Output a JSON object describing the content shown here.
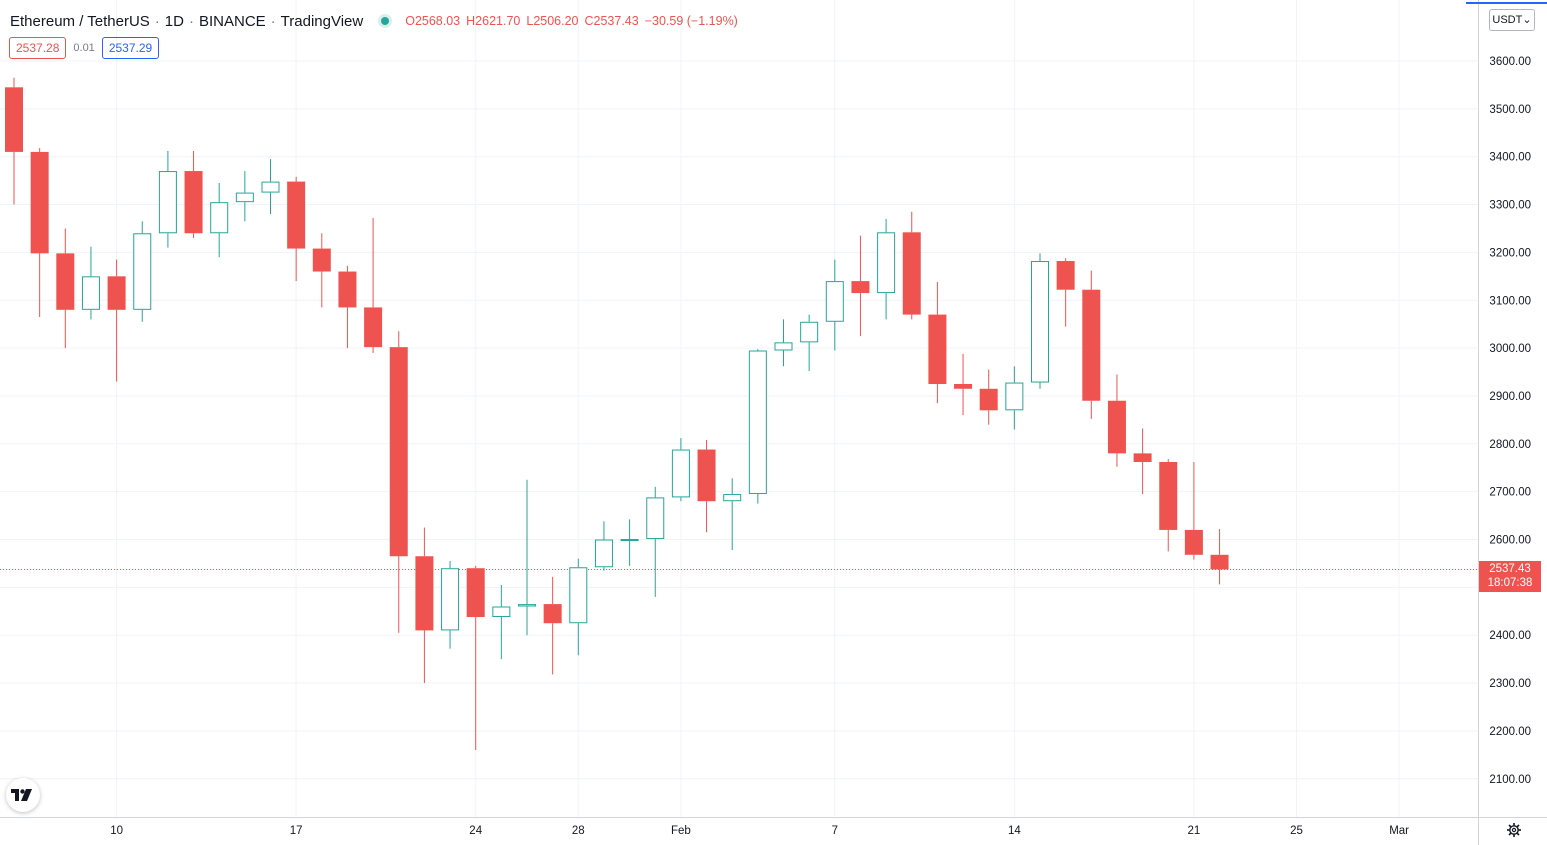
{
  "header": {
    "symbol": "Ethereum / TetherUS",
    "interval": "1D",
    "exchange": "BINANCE",
    "source": "TradingView",
    "ohlc": {
      "open_label": "O",
      "open": "2568.03",
      "high_label": "H",
      "high": "2621.70",
      "low_label": "L",
      "low": "2506.20",
      "close_label": "C",
      "close": "2537.43",
      "change": "−30.59 (−1.19%)"
    }
  },
  "quote": {
    "sell": "2537.28",
    "spread": "0.01",
    "buy": "2537.29"
  },
  "currency_button": "USDT",
  "last_price": {
    "price": "2537.43",
    "countdown": "18:07:38"
  },
  "colors": {
    "up": "#26a69a",
    "down": "#ef5350",
    "grid": "#f0f3fa",
    "axis_text": "#131722",
    "text_muted": "#787b86"
  },
  "chart_data": {
    "type": "candlestick",
    "title": "Ethereum / TetherUS · 1D · BINANCE",
    "xlabel": "",
    "ylabel": "USDT",
    "ylim": [
      2000,
      3700
    ],
    "y_ticks": [
      "2100.00",
      "2200.00",
      "2300.00",
      "2400.00",
      "2500.00",
      "2600.00",
      "2700.00",
      "2800.00",
      "2900.00",
      "3000.00",
      "3100.00",
      "3200.00",
      "3300.00",
      "3400.00",
      "3500.00",
      "3600.00"
    ],
    "x_ticks": [
      {
        "label": "10",
        "index": 4
      },
      {
        "label": "17",
        "index": 11
      },
      {
        "label": "24",
        "index": 18
      },
      {
        "label": "28",
        "index": 22
      },
      {
        "label": "Feb",
        "index": 26
      },
      {
        "label": "7",
        "index": 32
      },
      {
        "label": "14",
        "index": 39
      },
      {
        "label": "21",
        "index": 46
      },
      {
        "label": "25",
        "index": 50
      },
      {
        "label": "Mar",
        "index": 54
      }
    ],
    "last_price": 2537.43,
    "candles": [
      {
        "date": "2022-01-06",
        "open": 3545,
        "high": 3565,
        "low": 3300,
        "close": 3410
      },
      {
        "date": "2022-01-07",
        "open": 3410,
        "high": 3418,
        "low": 3065,
        "close": 3198
      },
      {
        "date": "2022-01-08",
        "open": 3198,
        "high": 3250,
        "low": 3000,
        "close": 3080
      },
      {
        "date": "2022-01-09",
        "open": 3080,
        "high": 3212,
        "low": 3060,
        "close": 3150
      },
      {
        "date": "2022-01-10",
        "open": 3150,
        "high": 3185,
        "low": 2930,
        "close": 3080
      },
      {
        "date": "2022-01-11",
        "open": 3080,
        "high": 3265,
        "low": 3055,
        "close": 3240
      },
      {
        "date": "2022-01-12",
        "open": 3240,
        "high": 3412,
        "low": 3210,
        "close": 3370
      },
      {
        "date": "2022-01-13",
        "open": 3370,
        "high": 3412,
        "low": 3230,
        "close": 3240
      },
      {
        "date": "2022-01-14",
        "open": 3240,
        "high": 3345,
        "low": 3190,
        "close": 3305
      },
      {
        "date": "2022-01-15",
        "open": 3305,
        "high": 3370,
        "low": 3265,
        "close": 3325
      },
      {
        "date": "2022-01-16",
        "open": 3325,
        "high": 3395,
        "low": 3280,
        "close": 3348
      },
      {
        "date": "2022-01-17",
        "open": 3348,
        "high": 3358,
        "low": 3140,
        "close": 3208
      },
      {
        "date": "2022-01-18",
        "open": 3208,
        "high": 3240,
        "low": 3085,
        "close": 3160
      },
      {
        "date": "2022-01-19",
        "open": 3160,
        "high": 3172,
        "low": 3000,
        "close": 3085
      },
      {
        "date": "2022-01-20",
        "open": 3085,
        "high": 3272,
        "low": 2990,
        "close": 3002
      },
      {
        "date": "2022-01-21",
        "open": 3002,
        "high": 3035,
        "low": 2405,
        "close": 2565
      },
      {
        "date": "2022-01-22",
        "open": 2565,
        "high": 2625,
        "low": 2300,
        "close": 2410
      },
      {
        "date": "2022-01-23",
        "open": 2410,
        "high": 2555,
        "low": 2372,
        "close": 2540
      },
      {
        "date": "2022-01-24",
        "open": 2540,
        "high": 2545,
        "low": 2160,
        "close": 2438
      },
      {
        "date": "2022-01-25",
        "open": 2438,
        "high": 2505,
        "low": 2350,
        "close": 2460
      },
      {
        "date": "2022-01-26",
        "open": 2460,
        "high": 2725,
        "low": 2400,
        "close": 2465
      },
      {
        "date": "2022-01-27",
        "open": 2465,
        "high": 2522,
        "low": 2318,
        "close": 2425
      },
      {
        "date": "2022-01-28",
        "open": 2425,
        "high": 2560,
        "low": 2358,
        "close": 2542
      },
      {
        "date": "2022-01-29",
        "open": 2542,
        "high": 2638,
        "low": 2535,
        "close": 2600
      },
      {
        "date": "2022-01-30",
        "open": 2600,
        "high": 2642,
        "low": 2545,
        "close": 2601
      },
      {
        "date": "2022-01-31",
        "open": 2601,
        "high": 2710,
        "low": 2480,
        "close": 2688
      },
      {
        "date": "2022-02-01",
        "open": 2688,
        "high": 2812,
        "low": 2680,
        "close": 2788
      },
      {
        "date": "2022-02-02",
        "open": 2788,
        "high": 2808,
        "low": 2615,
        "close": 2680
      },
      {
        "date": "2022-02-03",
        "open": 2680,
        "high": 2728,
        "low": 2578,
        "close": 2695
      },
      {
        "date": "2022-02-04",
        "open": 2695,
        "high": 2998,
        "low": 2675,
        "close": 2995
      },
      {
        "date": "2022-02-05",
        "open": 2995,
        "high": 3060,
        "low": 2962,
        "close": 3012
      },
      {
        "date": "2022-02-06",
        "open": 3012,
        "high": 3070,
        "low": 2952,
        "close": 3055
      },
      {
        "date": "2022-02-07",
        "open": 3055,
        "high": 3185,
        "low": 2995,
        "close": 3140
      },
      {
        "date": "2022-02-08",
        "open": 3140,
        "high": 3235,
        "low": 3025,
        "close": 3115
      },
      {
        "date": "2022-02-09",
        "open": 3115,
        "high": 3270,
        "low": 3060,
        "close": 3242
      },
      {
        "date": "2022-02-10",
        "open": 3242,
        "high": 3285,
        "low": 3060,
        "close": 3070
      },
      {
        "date": "2022-02-11",
        "open": 3070,
        "high": 3138,
        "low": 2885,
        "close": 2925
      },
      {
        "date": "2022-02-12",
        "open": 2925,
        "high": 2988,
        "low": 2860,
        "close": 2915
      },
      {
        "date": "2022-02-13",
        "open": 2915,
        "high": 2955,
        "low": 2840,
        "close": 2870
      },
      {
        "date": "2022-02-14",
        "open": 2870,
        "high": 2962,
        "low": 2830,
        "close": 2928
      },
      {
        "date": "2022-02-15",
        "open": 2928,
        "high": 3198,
        "low": 2915,
        "close": 3182
      },
      {
        "date": "2022-02-16",
        "open": 3182,
        "high": 3188,
        "low": 3045,
        "close": 3122
      },
      {
        "date": "2022-02-17",
        "open": 3122,
        "high": 3162,
        "low": 2852,
        "close": 2890
      },
      {
        "date": "2022-02-18",
        "open": 2890,
        "high": 2945,
        "low": 2752,
        "close": 2780
      },
      {
        "date": "2022-02-19",
        "open": 2780,
        "high": 2832,
        "low": 2695,
        "close": 2762
      },
      {
        "date": "2022-02-20",
        "open": 2762,
        "high": 2768,
        "low": 2575,
        "close": 2620
      },
      {
        "date": "2022-02-21",
        "open": 2620,
        "high": 2762,
        "low": 2558,
        "close": 2568
      },
      {
        "date": "2022-02-22",
        "open": 2568.03,
        "high": 2621.7,
        "low": 2506.2,
        "close": 2537.43
      }
    ]
  }
}
